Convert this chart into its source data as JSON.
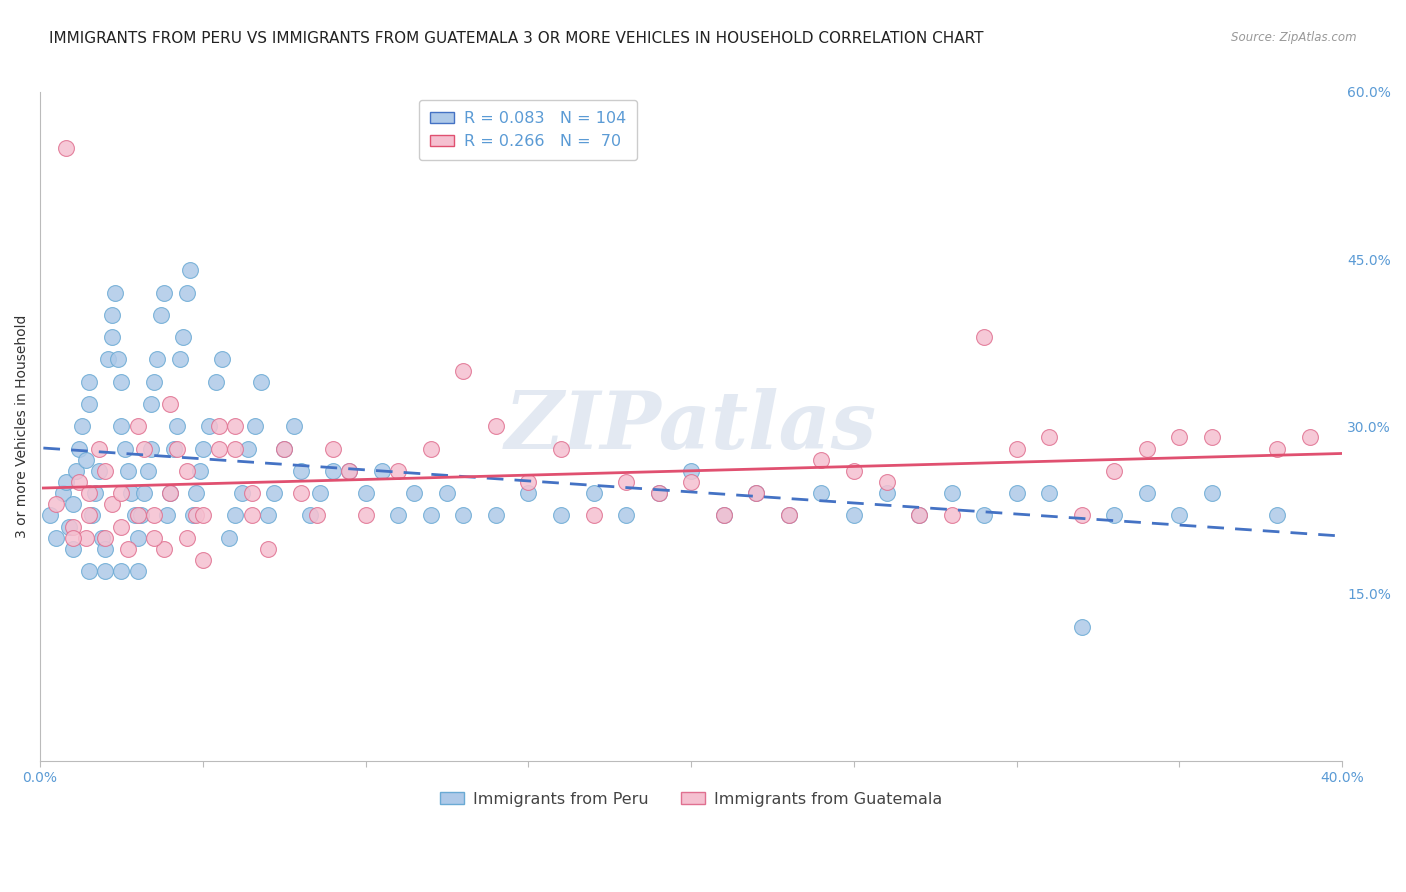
{
  "title": "IMMIGRANTS FROM PERU VS IMMIGRANTS FROM GUATEMALA 3 OR MORE VEHICLES IN HOUSEHOLD CORRELATION CHART",
  "source": "Source: ZipAtlas.com",
  "ylabel": "3 or more Vehicles in Household",
  "xlim": [
    0.0,
    0.4
  ],
  "ylim": [
    0.0,
    0.6
  ],
  "xtick_positions": [
    0.0,
    0.05,
    0.1,
    0.15,
    0.2,
    0.25,
    0.3,
    0.35,
    0.4
  ],
  "ytick_right_positions": [
    0.15,
    0.3,
    0.45,
    0.6
  ],
  "peru_color": "#aec9e8",
  "peru_edge": "#6aaad4",
  "peru_trend": "#4472c4",
  "guat_color": "#f5c0d0",
  "guat_edge": "#e07090",
  "guat_trend": "#e05070",
  "axis_tick_color": "#5b9bd5",
  "grid_color": "#d8e4f0",
  "watermark": "ZIPatlas",
  "watermark_color": "#ccd8e8",
  "title_fontsize": 11,
  "tick_fontsize": 10,
  "legend_fontsize": 11.5,
  "ylabel_fontsize": 10,
  "peru_label": "Immigrants from Peru",
  "guat_label": "Immigrants from Guatemala",
  "peru_R": "0.083",
  "peru_N": "104",
  "guat_R": "0.266",
  "guat_N": " 70",
  "peru_x": [
    0.003,
    0.005,
    0.007,
    0.008,
    0.009,
    0.01,
    0.01,
    0.011,
    0.012,
    0.013,
    0.014,
    0.015,
    0.015,
    0.016,
    0.017,
    0.018,
    0.019,
    0.02,
    0.021,
    0.022,
    0.022,
    0.023,
    0.024,
    0.025,
    0.025,
    0.026,
    0.027,
    0.028,
    0.029,
    0.03,
    0.031,
    0.032,
    0.033,
    0.034,
    0.034,
    0.035,
    0.036,
    0.037,
    0.038,
    0.039,
    0.04,
    0.041,
    0.042,
    0.043,
    0.044,
    0.045,
    0.046,
    0.047,
    0.048,
    0.049,
    0.05,
    0.052,
    0.054,
    0.056,
    0.058,
    0.06,
    0.062,
    0.064,
    0.066,
    0.068,
    0.07,
    0.072,
    0.075,
    0.078,
    0.08,
    0.083,
    0.086,
    0.09,
    0.095,
    0.1,
    0.105,
    0.11,
    0.115,
    0.12,
    0.125,
    0.13,
    0.14,
    0.15,
    0.16,
    0.17,
    0.18,
    0.19,
    0.2,
    0.21,
    0.22,
    0.23,
    0.24,
    0.25,
    0.26,
    0.27,
    0.28,
    0.29,
    0.3,
    0.31,
    0.32,
    0.33,
    0.34,
    0.35,
    0.36,
    0.38,
    0.015,
    0.02,
    0.025,
    0.03
  ],
  "peru_y": [
    0.22,
    0.2,
    0.24,
    0.25,
    0.21,
    0.23,
    0.19,
    0.26,
    0.28,
    0.3,
    0.27,
    0.32,
    0.34,
    0.22,
    0.24,
    0.26,
    0.2,
    0.19,
    0.36,
    0.38,
    0.4,
    0.42,
    0.36,
    0.34,
    0.3,
    0.28,
    0.26,
    0.24,
    0.22,
    0.2,
    0.22,
    0.24,
    0.26,
    0.28,
    0.32,
    0.34,
    0.36,
    0.4,
    0.42,
    0.22,
    0.24,
    0.28,
    0.3,
    0.36,
    0.38,
    0.42,
    0.44,
    0.22,
    0.24,
    0.26,
    0.28,
    0.3,
    0.34,
    0.36,
    0.2,
    0.22,
    0.24,
    0.28,
    0.3,
    0.34,
    0.22,
    0.24,
    0.28,
    0.3,
    0.26,
    0.22,
    0.24,
    0.26,
    0.26,
    0.24,
    0.26,
    0.22,
    0.24,
    0.22,
    0.24,
    0.22,
    0.22,
    0.24,
    0.22,
    0.24,
    0.22,
    0.24,
    0.26,
    0.22,
    0.24,
    0.22,
    0.24,
    0.22,
    0.24,
    0.22,
    0.24,
    0.22,
    0.24,
    0.24,
    0.12,
    0.22,
    0.24,
    0.22,
    0.24,
    0.22,
    0.17,
    0.17,
    0.17,
    0.17
  ],
  "guat_x": [
    0.005,
    0.008,
    0.01,
    0.012,
    0.014,
    0.015,
    0.018,
    0.02,
    0.022,
    0.025,
    0.027,
    0.03,
    0.032,
    0.035,
    0.038,
    0.04,
    0.042,
    0.045,
    0.048,
    0.05,
    0.055,
    0.06,
    0.065,
    0.07,
    0.075,
    0.08,
    0.085,
    0.09,
    0.095,
    0.1,
    0.11,
    0.12,
    0.13,
    0.14,
    0.15,
    0.16,
    0.17,
    0.18,
    0.19,
    0.2,
    0.21,
    0.22,
    0.23,
    0.24,
    0.25,
    0.26,
    0.27,
    0.28,
    0.29,
    0.3,
    0.31,
    0.32,
    0.33,
    0.34,
    0.35,
    0.36,
    0.38,
    0.39,
    0.01,
    0.015,
    0.02,
    0.025,
    0.03,
    0.035,
    0.04,
    0.045,
    0.05,
    0.055,
    0.06,
    0.065
  ],
  "guat_y": [
    0.23,
    0.55,
    0.21,
    0.25,
    0.2,
    0.22,
    0.28,
    0.26,
    0.23,
    0.21,
    0.19,
    0.3,
    0.28,
    0.22,
    0.19,
    0.32,
    0.28,
    0.26,
    0.22,
    0.18,
    0.3,
    0.28,
    0.24,
    0.19,
    0.28,
    0.24,
    0.22,
    0.28,
    0.26,
    0.22,
    0.26,
    0.28,
    0.35,
    0.3,
    0.25,
    0.28,
    0.22,
    0.25,
    0.24,
    0.25,
    0.22,
    0.24,
    0.22,
    0.27,
    0.26,
    0.25,
    0.22,
    0.22,
    0.38,
    0.28,
    0.29,
    0.22,
    0.26,
    0.28,
    0.29,
    0.29,
    0.28,
    0.29,
    0.2,
    0.24,
    0.2,
    0.24,
    0.22,
    0.2,
    0.24,
    0.2,
    0.22,
    0.28,
    0.3,
    0.22
  ]
}
